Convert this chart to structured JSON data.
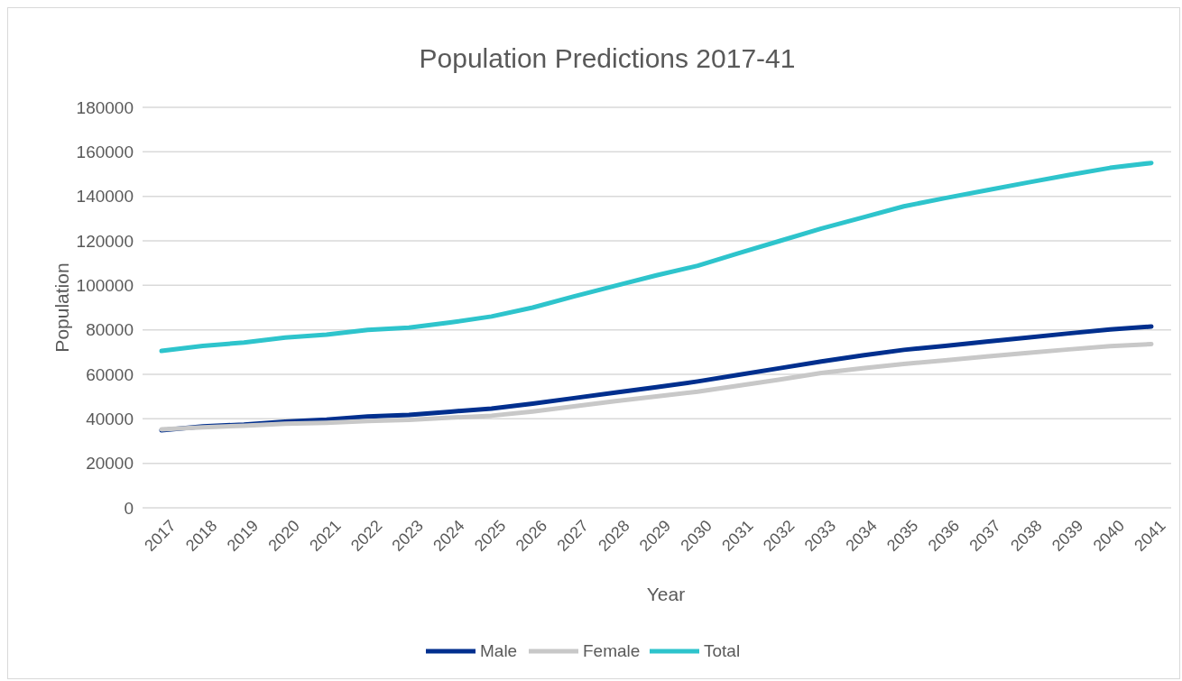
{
  "chart_data": {
    "type": "line",
    "title": "Population Predictions 2017-41",
    "xlabel": "Year",
    "ylabel": "Population",
    "categories": [
      "2017",
      "2018",
      "2019",
      "2020",
      "2021",
      "2022",
      "2023",
      "2024",
      "2025",
      "2026",
      "2027",
      "2028",
      "2029",
      "2030",
      "2031",
      "2032",
      "2033",
      "2034",
      "2035",
      "2036",
      "2037",
      "2038",
      "2039",
      "2040",
      "2041"
    ],
    "series": [
      {
        "name": "Male",
        "color": "#002f8e",
        "values": [
          34900,
          36600,
          37400,
          38700,
          39600,
          41000,
          41800,
          43200,
          44600,
          46800,
          49300,
          51800,
          54200,
          56800,
          59800,
          62800,
          65800,
          68500,
          71000,
          72800,
          74700,
          76500,
          78400,
          80200,
          81500
        ]
      },
      {
        "name": "Female",
        "color": "#c8c8c8",
        "values": [
          35300,
          36200,
          36900,
          37800,
          38200,
          39000,
          39500,
          40500,
          41400,
          43300,
          45600,
          47900,
          50100,
          52200,
          54900,
          57700,
          60600,
          62700,
          64700,
          66300,
          68000,
          69600,
          71200,
          72700,
          73600
        ]
      },
      {
        "name": "Total",
        "color": "#2ec4cc",
        "values": [
          70500,
          72800,
          74300,
          76500,
          77800,
          80000,
          81000,
          83300,
          86000,
          90000,
          95000,
          99800,
          104500,
          108800,
          114500,
          120000,
          125500,
          130500,
          135500,
          139200,
          142700,
          146200,
          149600,
          152800,
          155000
        ]
      }
    ],
    "ylim": [
      0,
      180000
    ],
    "yticks": [
      0,
      20000,
      40000,
      60000,
      80000,
      100000,
      120000,
      140000,
      160000,
      180000
    ],
    "grid": "y",
    "legend": "bottom",
    "marker": "none",
    "line_style": "solid"
  }
}
